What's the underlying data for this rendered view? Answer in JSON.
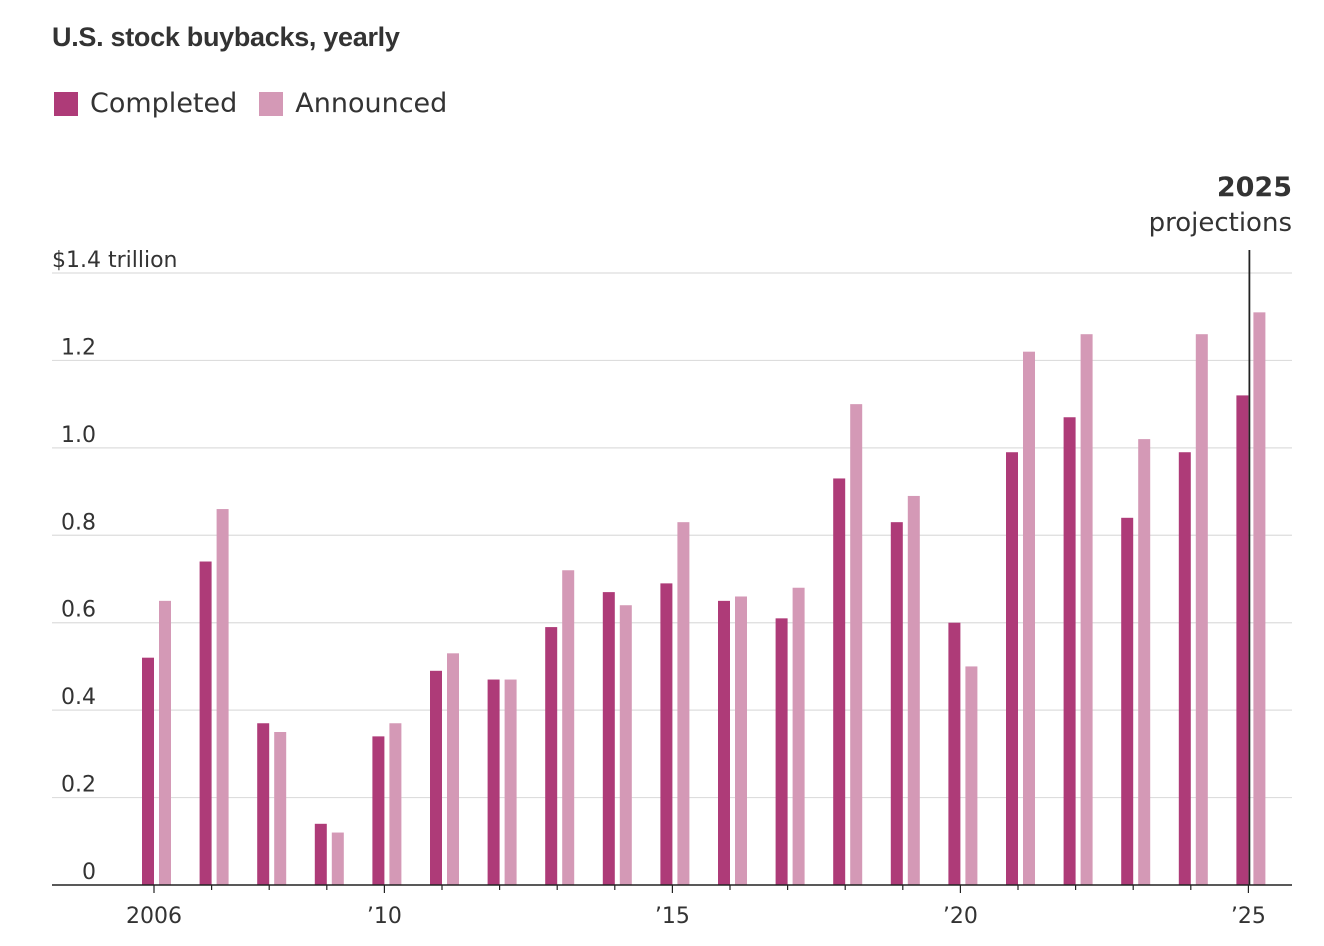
{
  "chart_data": {
    "type": "bar",
    "title": "U.S. stock buybacks, yearly",
    "ylabel_top": "$1.4 trillion",
    "ylim": [
      0,
      1.4
    ],
    "yticks": [
      0,
      0.2,
      0.4,
      0.6,
      0.8,
      1.0,
      1.2,
      1.4
    ],
    "ytick_labels": [
      "0",
      "0.2",
      "0.4",
      "0.6",
      "0.8",
      "1.0",
      "1.2",
      "$1.4 trillion"
    ],
    "categories": [
      "2006",
      "2007",
      "2008",
      "2009",
      "2010",
      "2011",
      "2012",
      "2013",
      "2014",
      "2015",
      "2016",
      "2017",
      "2018",
      "2019",
      "2020",
      "2021",
      "2022",
      "2023",
      "2024",
      "2025"
    ],
    "xtick_labels": [
      {
        "year": "2006",
        "label": "2006"
      },
      {
        "year": "2010",
        "label": "’10"
      },
      {
        "year": "2015",
        "label": "’15"
      },
      {
        "year": "2020",
        "label": "’20"
      },
      {
        "year": "2025",
        "label": "’25"
      }
    ],
    "series": [
      {
        "name": "Completed",
        "color": "#ae3b78",
        "values": [
          0.52,
          0.74,
          0.37,
          0.14,
          0.34,
          0.49,
          0.47,
          0.59,
          0.67,
          0.69,
          0.65,
          0.61,
          0.93,
          0.83,
          0.6,
          0.99,
          1.07,
          0.84,
          0.99,
          1.12
        ]
      },
      {
        "name": "Announced",
        "color": "#d499b6",
        "values": [
          0.65,
          0.86,
          0.35,
          0.12,
          0.37,
          0.53,
          0.47,
          0.72,
          0.64,
          0.83,
          0.66,
          0.68,
          1.1,
          0.89,
          0.5,
          1.22,
          1.26,
          1.02,
          1.26,
          1.31
        ]
      }
    ],
    "annotation": {
      "year": "2025",
      "bold_text": "2025",
      "text": "projections"
    },
    "grid": true,
    "legend_position": "top-left"
  },
  "colors": {
    "grid": "#dddddd",
    "axis": "#222222",
    "text": "#333333"
  }
}
